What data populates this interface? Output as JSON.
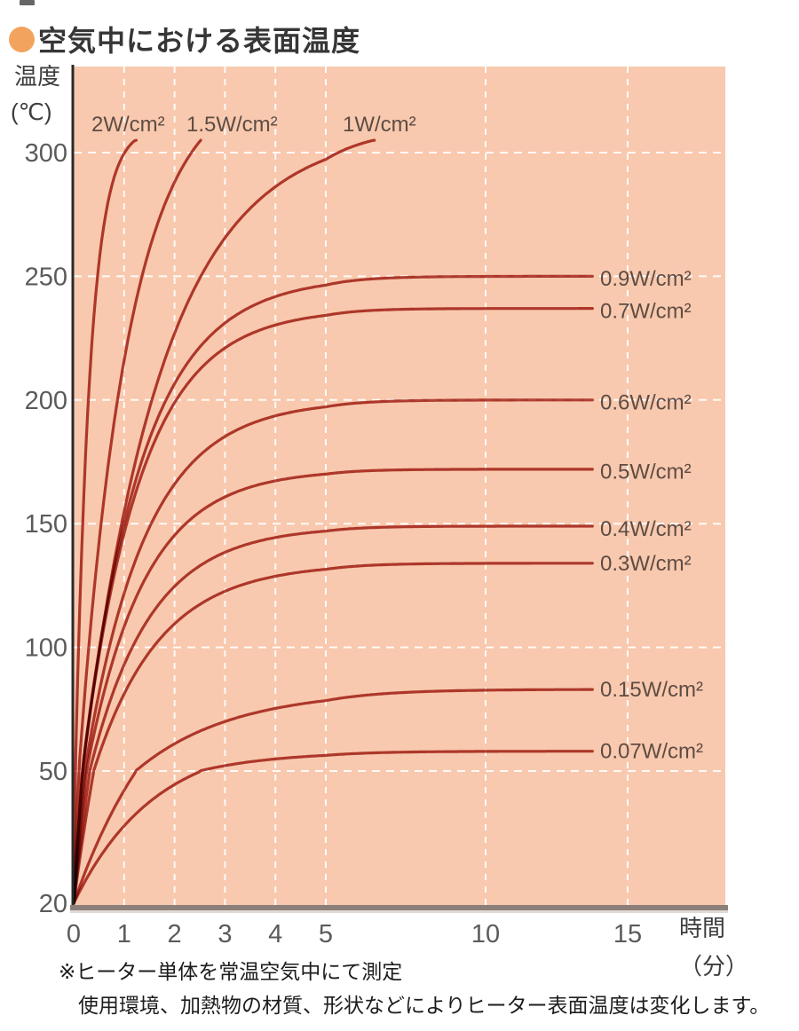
{
  "page": {
    "title": "空気中における表面温度"
  },
  "colors": {
    "bullet": "#f2a45f",
    "plot_bg": "#f8c9ae",
    "curve": "#b2453d",
    "grid": "#ffffff",
    "y_axis": "#2c2a29",
    "baseline": "#8d7f7a",
    "baseline_shadow": "#cdbfb8",
    "tick_text": "#5b5b5b",
    "curve_label_text": "#5e4c44"
  },
  "chart_data": {
    "type": "line",
    "title": "空気中における表面温度",
    "x_axis": {
      "label": "時間",
      "unit": "（分）",
      "ticks": [
        0,
        1,
        2,
        3,
        4,
        5,
        10,
        15
      ]
    },
    "y_axis": {
      "label": "温度",
      "unit": "(℃)",
      "ticks": [
        300,
        250,
        200,
        150,
        100,
        50,
        20
      ]
    },
    "xlim_min": [
      0,
      15.8
    ],
    "ylim_c": [
      20,
      335
    ],
    "start_temp_c": 20,
    "grid": "white dashed, at every labeled tick",
    "legend_position": "labels at curve ends (top for 2/1.5/1, right for others)",
    "series": [
      {
        "label": "2W/cm²",
        "watt_per_cm2": 2,
        "label_side": "top",
        "label_x": 103,
        "plateau_temp_c": null,
        "exceeds_chart": true,
        "model_max_c": 310,
        "tau_min": 0.3,
        "points": [
          [
            0,
            20
          ],
          [
            0.2,
            161
          ],
          [
            0.5,
            255
          ],
          [
            1,
            300
          ],
          [
            1.2,
            305
          ]
        ]
      },
      {
        "label": "1.5W/cm²",
        "watt_per_cm2": 1.5,
        "label_side": "top",
        "label_x": 210,
        "plateau_temp_c": null,
        "exceeds_chart": true,
        "model_max_c": 330,
        "tau_min": 1.0,
        "points": [
          [
            0,
            20
          ],
          [
            0.5,
            142
          ],
          [
            1,
            216
          ],
          [
            2,
            288
          ],
          [
            2.5,
            304
          ]
        ]
      },
      {
        "label": "1W/cm²",
        "watt_per_cm2": 1,
        "label_side": "top",
        "label_x": 386,
        "plateau_temp_c": null,
        "exceeds_chart": true,
        "model_max_c": 310,
        "tau_min": 1.6,
        "points": [
          [
            0,
            20
          ],
          [
            1,
            155
          ],
          [
            2,
            227
          ],
          [
            3,
            266
          ],
          [
            4,
            286
          ],
          [
            5,
            297
          ],
          [
            6.5,
            305
          ]
        ]
      },
      {
        "label": "0.9W/cm²",
        "watt_per_cm2": 0.9,
        "label_side": "right",
        "label_x": null,
        "plateau_temp_c": 249,
        "exceeds_chart": false,
        "model_max_c": 250,
        "tau_min": 1.2,
        "points": [
          [
            0,
            20
          ],
          [
            1,
            150
          ],
          [
            2,
            212
          ],
          [
            3,
            235
          ],
          [
            5,
            248
          ],
          [
            10,
            249
          ],
          [
            13.8,
            249
          ]
        ]
      },
      {
        "label": "0.7W/cm²",
        "watt_per_cm2": 0.7,
        "label_side": "right",
        "label_x": null,
        "plateau_temp_c": 236,
        "exceeds_chart": false,
        "model_max_c": 237,
        "tau_min": 1.15,
        "points": [
          [
            0,
            20
          ],
          [
            1,
            146
          ],
          [
            2,
            199
          ],
          [
            3,
            220
          ],
          [
            5,
            233
          ],
          [
            10,
            236
          ],
          [
            13.8,
            236
          ]
        ]
      },
      {
        "label": "0.6W/cm²",
        "watt_per_cm2": 0.6,
        "label_side": "right",
        "label_x": null,
        "plateau_temp_c": 199,
        "exceeds_chart": false,
        "model_max_c": 200,
        "tau_min": 1.2,
        "points": [
          [
            0,
            20
          ],
          [
            1,
            122
          ],
          [
            2,
            162
          ],
          [
            3,
            181
          ],
          [
            5,
            197
          ],
          [
            10,
            199
          ],
          [
            13.8,
            199
          ]
        ]
      },
      {
        "label": "0.5W/cm²",
        "watt_per_cm2": 0.5,
        "label_side": "right",
        "label_x": null,
        "plateau_temp_c": 171,
        "exceeds_chart": false,
        "model_max_c": 172,
        "tau_min": 1.15,
        "points": [
          [
            0,
            20
          ],
          [
            1,
            109
          ],
          [
            2,
            145
          ],
          [
            3,
            161
          ],
          [
            5,
            170
          ],
          [
            10,
            171
          ],
          [
            13.8,
            171
          ]
        ]
      },
      {
        "label": "0.4W/cm²",
        "watt_per_cm2": 0.4,
        "label_side": "right",
        "label_x": null,
        "plateau_temp_c": 148,
        "exceeds_chart": false,
        "model_max_c": 149,
        "tau_min": 1.2,
        "points": [
          [
            0,
            20
          ],
          [
            1,
            93
          ],
          [
            2,
            125
          ],
          [
            3,
            138
          ],
          [
            5,
            147
          ],
          [
            10,
            148
          ],
          [
            13.8,
            148
          ]
        ]
      },
      {
        "label": "0.3W/cm²",
        "watt_per_cm2": 0.3,
        "label_side": "right",
        "label_x": null,
        "plateau_temp_c": 134,
        "exceeds_chart": false,
        "model_max_c": 134,
        "tau_min": 1.3,
        "points": [
          [
            0,
            20
          ],
          [
            1,
            81
          ],
          [
            2,
            110
          ],
          [
            3,
            123
          ],
          [
            5,
            132
          ],
          [
            10,
            134
          ],
          [
            13.8,
            134
          ]
        ]
      },
      {
        "label": "0.15W/cm²",
        "watt_per_cm2": 0.15,
        "label_side": "right",
        "label_x": null,
        "plateau_temp_c": 83,
        "exceeds_chart": false,
        "model_max_c": 83,
        "tau_min": 1.9,
        "points": [
          [
            0,
            20
          ],
          [
            1,
            46
          ],
          [
            2,
            61
          ],
          [
            3,
            70
          ],
          [
            5,
            79
          ],
          [
            10,
            83
          ],
          [
            13.8,
            83
          ]
        ]
      },
      {
        "label": "0.07W/cm²",
        "watt_per_cm2": 0.07,
        "label_side": "right",
        "label_x": null,
        "plateau_temp_c": 58,
        "exceeds_chart": false,
        "model_max_c": 58,
        "tau_min": 1.6,
        "points": [
          [
            0,
            20
          ],
          [
            1,
            38
          ],
          [
            2,
            49
          ],
          [
            3,
            53
          ],
          [
            5,
            56
          ],
          [
            10,
            58
          ],
          [
            13.8,
            58
          ]
        ]
      }
    ]
  },
  "footnote": {
    "line1": "※ヒーター単体を常温空気中にて測定",
    "line2": "使用環境、加熱物の材質、形状などによりヒーター表面温度は変化します。"
  }
}
